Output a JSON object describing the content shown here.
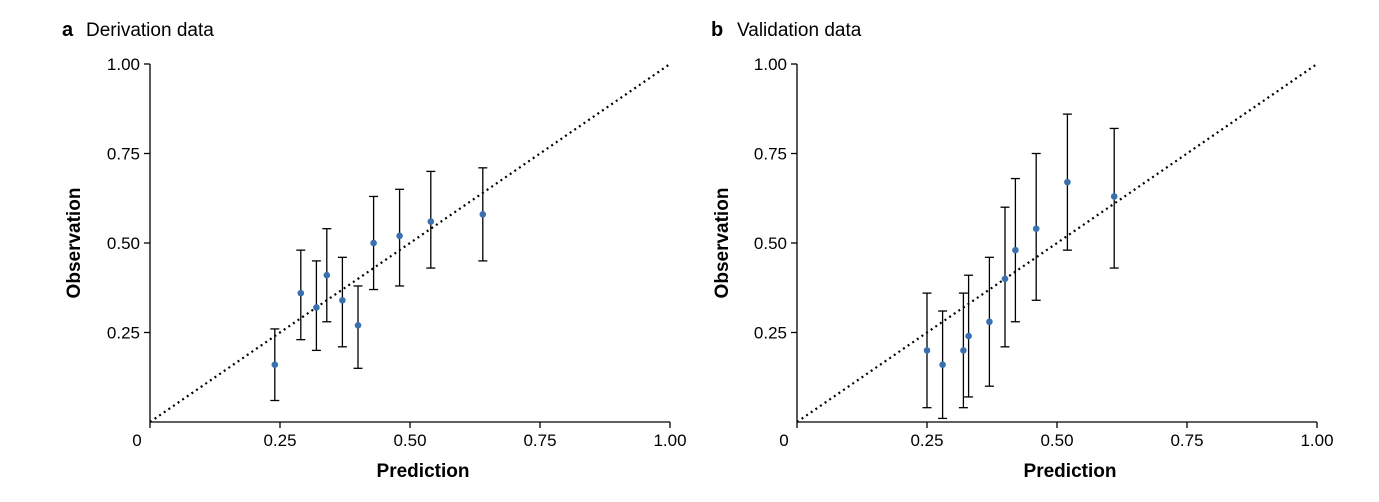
{
  "panels": [
    {
      "letter": "a",
      "title": "Derivation data"
    },
    {
      "letter": "b",
      "title": "Validation data"
    }
  ],
  "colors": {
    "point": "#3a6fb0",
    "errorbar": "#000000",
    "reference_line": "#000000"
  },
  "chart_data": [
    {
      "type": "scatter",
      "title": "Derivation data",
      "xlabel": "Prediction",
      "ylabel": "Observation",
      "xlim": [
        0,
        1
      ],
      "ylim": [
        0,
        1
      ],
      "xticks": [
        0,
        0.25,
        0.5,
        0.75,
        1.0
      ],
      "xtick_labels": [
        "0",
        "0.25",
        "0.50",
        "0.75",
        "1.00"
      ],
      "yticks": [
        0.25,
        0.5,
        0.75,
        1.0
      ],
      "ytick_labels": [
        "0.25",
        "0.50",
        "0.75",
        "1.00"
      ],
      "reference_line": "y = x (dotted)",
      "grid": false,
      "points": [
        {
          "x": 0.24,
          "y": 0.16,
          "lower": 0.06,
          "upper": 0.26
        },
        {
          "x": 0.29,
          "y": 0.36,
          "lower": 0.23,
          "upper": 0.48
        },
        {
          "x": 0.32,
          "y": 0.32,
          "lower": 0.2,
          "upper": 0.45
        },
        {
          "x": 0.34,
          "y": 0.41,
          "lower": 0.28,
          "upper": 0.54
        },
        {
          "x": 0.37,
          "y": 0.34,
          "lower": 0.21,
          "upper": 0.46
        },
        {
          "x": 0.4,
          "y": 0.27,
          "lower": 0.15,
          "upper": 0.38
        },
        {
          "x": 0.43,
          "y": 0.5,
          "lower": 0.37,
          "upper": 0.63
        },
        {
          "x": 0.48,
          "y": 0.52,
          "lower": 0.38,
          "upper": 0.65
        },
        {
          "x": 0.54,
          "y": 0.56,
          "lower": 0.43,
          "upper": 0.7
        },
        {
          "x": 0.64,
          "y": 0.58,
          "lower": 0.45,
          "upper": 0.71
        }
      ]
    },
    {
      "type": "scatter",
      "title": "Validation data",
      "xlabel": "Prediction",
      "ylabel": "Observation",
      "xlim": [
        0,
        1
      ],
      "ylim": [
        0,
        1
      ],
      "xticks": [
        0,
        0.25,
        0.5,
        0.75,
        1.0
      ],
      "xtick_labels": [
        "0",
        "0.25",
        "0.50",
        "0.75",
        "1.00"
      ],
      "yticks": [
        0.25,
        0.5,
        0.75,
        1.0
      ],
      "ytick_labels": [
        "0.25",
        "0.50",
        "0.75",
        "1.00"
      ],
      "reference_line": "y = x (dotted)",
      "grid": false,
      "points": [
        {
          "x": 0.25,
          "y": 0.2,
          "lower": 0.04,
          "upper": 0.36
        },
        {
          "x": 0.28,
          "y": 0.16,
          "lower": 0.01,
          "upper": 0.31
        },
        {
          "x": 0.32,
          "y": 0.2,
          "lower": 0.04,
          "upper": 0.36
        },
        {
          "x": 0.33,
          "y": 0.24,
          "lower": 0.07,
          "upper": 0.41
        },
        {
          "x": 0.37,
          "y": 0.28,
          "lower": 0.1,
          "upper": 0.46
        },
        {
          "x": 0.4,
          "y": 0.4,
          "lower": 0.21,
          "upper": 0.6
        },
        {
          "x": 0.42,
          "y": 0.48,
          "lower": 0.28,
          "upper": 0.68
        },
        {
          "x": 0.46,
          "y": 0.54,
          "lower": 0.34,
          "upper": 0.75
        },
        {
          "x": 0.52,
          "y": 0.67,
          "lower": 0.48,
          "upper": 0.86
        },
        {
          "x": 0.61,
          "y": 0.63,
          "lower": 0.43,
          "upper": 0.82
        }
      ]
    }
  ]
}
